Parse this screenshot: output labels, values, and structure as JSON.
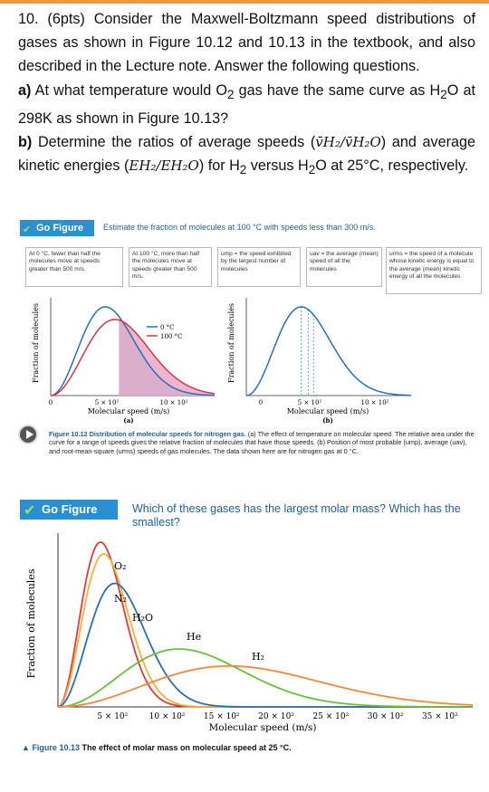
{
  "question": {
    "line1": "10. (6pts) Consider the Maxwell-Boltzmann speed distributions of gases as shown in Figure 10.12 and 10.13 in the textbook, and also described in the Lecture note. Answer the following questions.",
    "a_label": "a)",
    "a_text_1": "At what temperature would O",
    "a_sub_1": "2",
    "a_text_2": " gas have the same curve as H",
    "a_sub_2": "2",
    "a_text_3": "O at 298K as shown in Figure 10.13?",
    "b_label": "b)",
    "b_text_1": "Determine the ratios of average speeds (",
    "b_ratio_speed": "v̄H₂/v̄H₂O",
    "b_text_2": ") and average kinetic energies (",
    "b_ratio_energy": "EH₂/EH₂O",
    "b_text_3": ") for H",
    "b_sub": "2",
    "b_text_4": " versus H",
    "b_sub2": "2",
    "b_text_5": "O at 25°C, respectively."
  },
  "figure_10_12": {
    "go_figure": "Go Figure",
    "question": "Estimate the fraction of molecules at 100 °C with speeds less than 300 m/s.",
    "annotations": [
      "At 0 °C, fewer than half the molecules move at speeds greater than 500 m/s.",
      "At 100 °C, more than half the molecules move at speeds greater than 500 m/s.",
      "ump = the speed exhibited by the largest number of molecules",
      "uav = the average (mean) speed of all the molecules",
      "urms = the speed of a molecule whose kinetic energy is equal to the average (mean) kinetic energy of all the molecules"
    ],
    "legend": [
      "0 °C",
      "100 °C"
    ],
    "panel_a_label": "(a)",
    "panel_b_label": "(b)",
    "caption_title": "Figure 10.12 Distribution of molecular speeds for nitrogen gas.",
    "caption_text": "(a) The effect of temperature on molecular speed. The relative area under the curve for a range of speeds gives the relative fraction of molecules that have those speeds. (b) Position of most probable (ump), average (uav), and root-mean-square (urms) speeds of gas molecules. The data shown here are for nitrogen gas at 0 °C."
  },
  "figure_10_13": {
    "go_figure": "Go Figure",
    "question": "Which of these gases has the largest molar mass? Which has the smallest?",
    "caption_label": "Figure 10.13",
    "caption_text": "The effect of molar mass on molecular speed at 25 °C."
  },
  "chart_data": [
    {
      "type": "area",
      "panel": "(a)",
      "xlabel": "Molecular speed (m/s)",
      "ylabel": "Fraction of molecules",
      "x_ticks": [
        "0",
        "5 × 10²",
        "10 × 10²"
      ],
      "xlim": [
        0,
        1200
      ],
      "series": [
        {
          "name": "0 °C",
          "color": "#2a6fb5",
          "peak_speed": 400
        },
        {
          "name": "100 °C",
          "color": "#d9334a",
          "peak_speed": 470
        }
      ],
      "shaded_region": {
        "from": 500,
        "to": 1200
      }
    },
    {
      "type": "line",
      "panel": "(b)",
      "xlabel": "Molecular speed (m/s)",
      "ylabel": "Fraction of molecules",
      "x_ticks": [
        "0",
        "5 × 10²",
        "10 × 10²"
      ],
      "xlim": [
        0,
        1200
      ],
      "series": [
        {
          "color": "#2a6fb5",
          "peak_speed": 400
        }
      ],
      "markers": [
        "ump",
        "uav",
        "urms"
      ]
    },
    {
      "type": "line",
      "xlabel": "Molecular speed (m/s)",
      "ylabel": "Fraction of molecules",
      "x_ticks": [
        "5 × 10²",
        "10 × 10²",
        "15 × 10²",
        "20 × 10²",
        "25 × 10²",
        "30 × 10²",
        "35 × 10²"
      ],
      "xlim": [
        0,
        3800
      ],
      "series": [
        {
          "name": "O₂",
          "color": "#e23b3b",
          "peak_speed": 390
        },
        {
          "name": "N₂",
          "color": "#f2b33a",
          "peak_speed": 420
        },
        {
          "name": "H₂O",
          "color": "#2a6fb5",
          "peak_speed": 520
        },
        {
          "name": "He",
          "color": "#6bbf3a",
          "peak_speed": 1110
        },
        {
          "name": "H₂",
          "color": "#f28a3a",
          "peak_speed": 1570
        }
      ]
    }
  ]
}
